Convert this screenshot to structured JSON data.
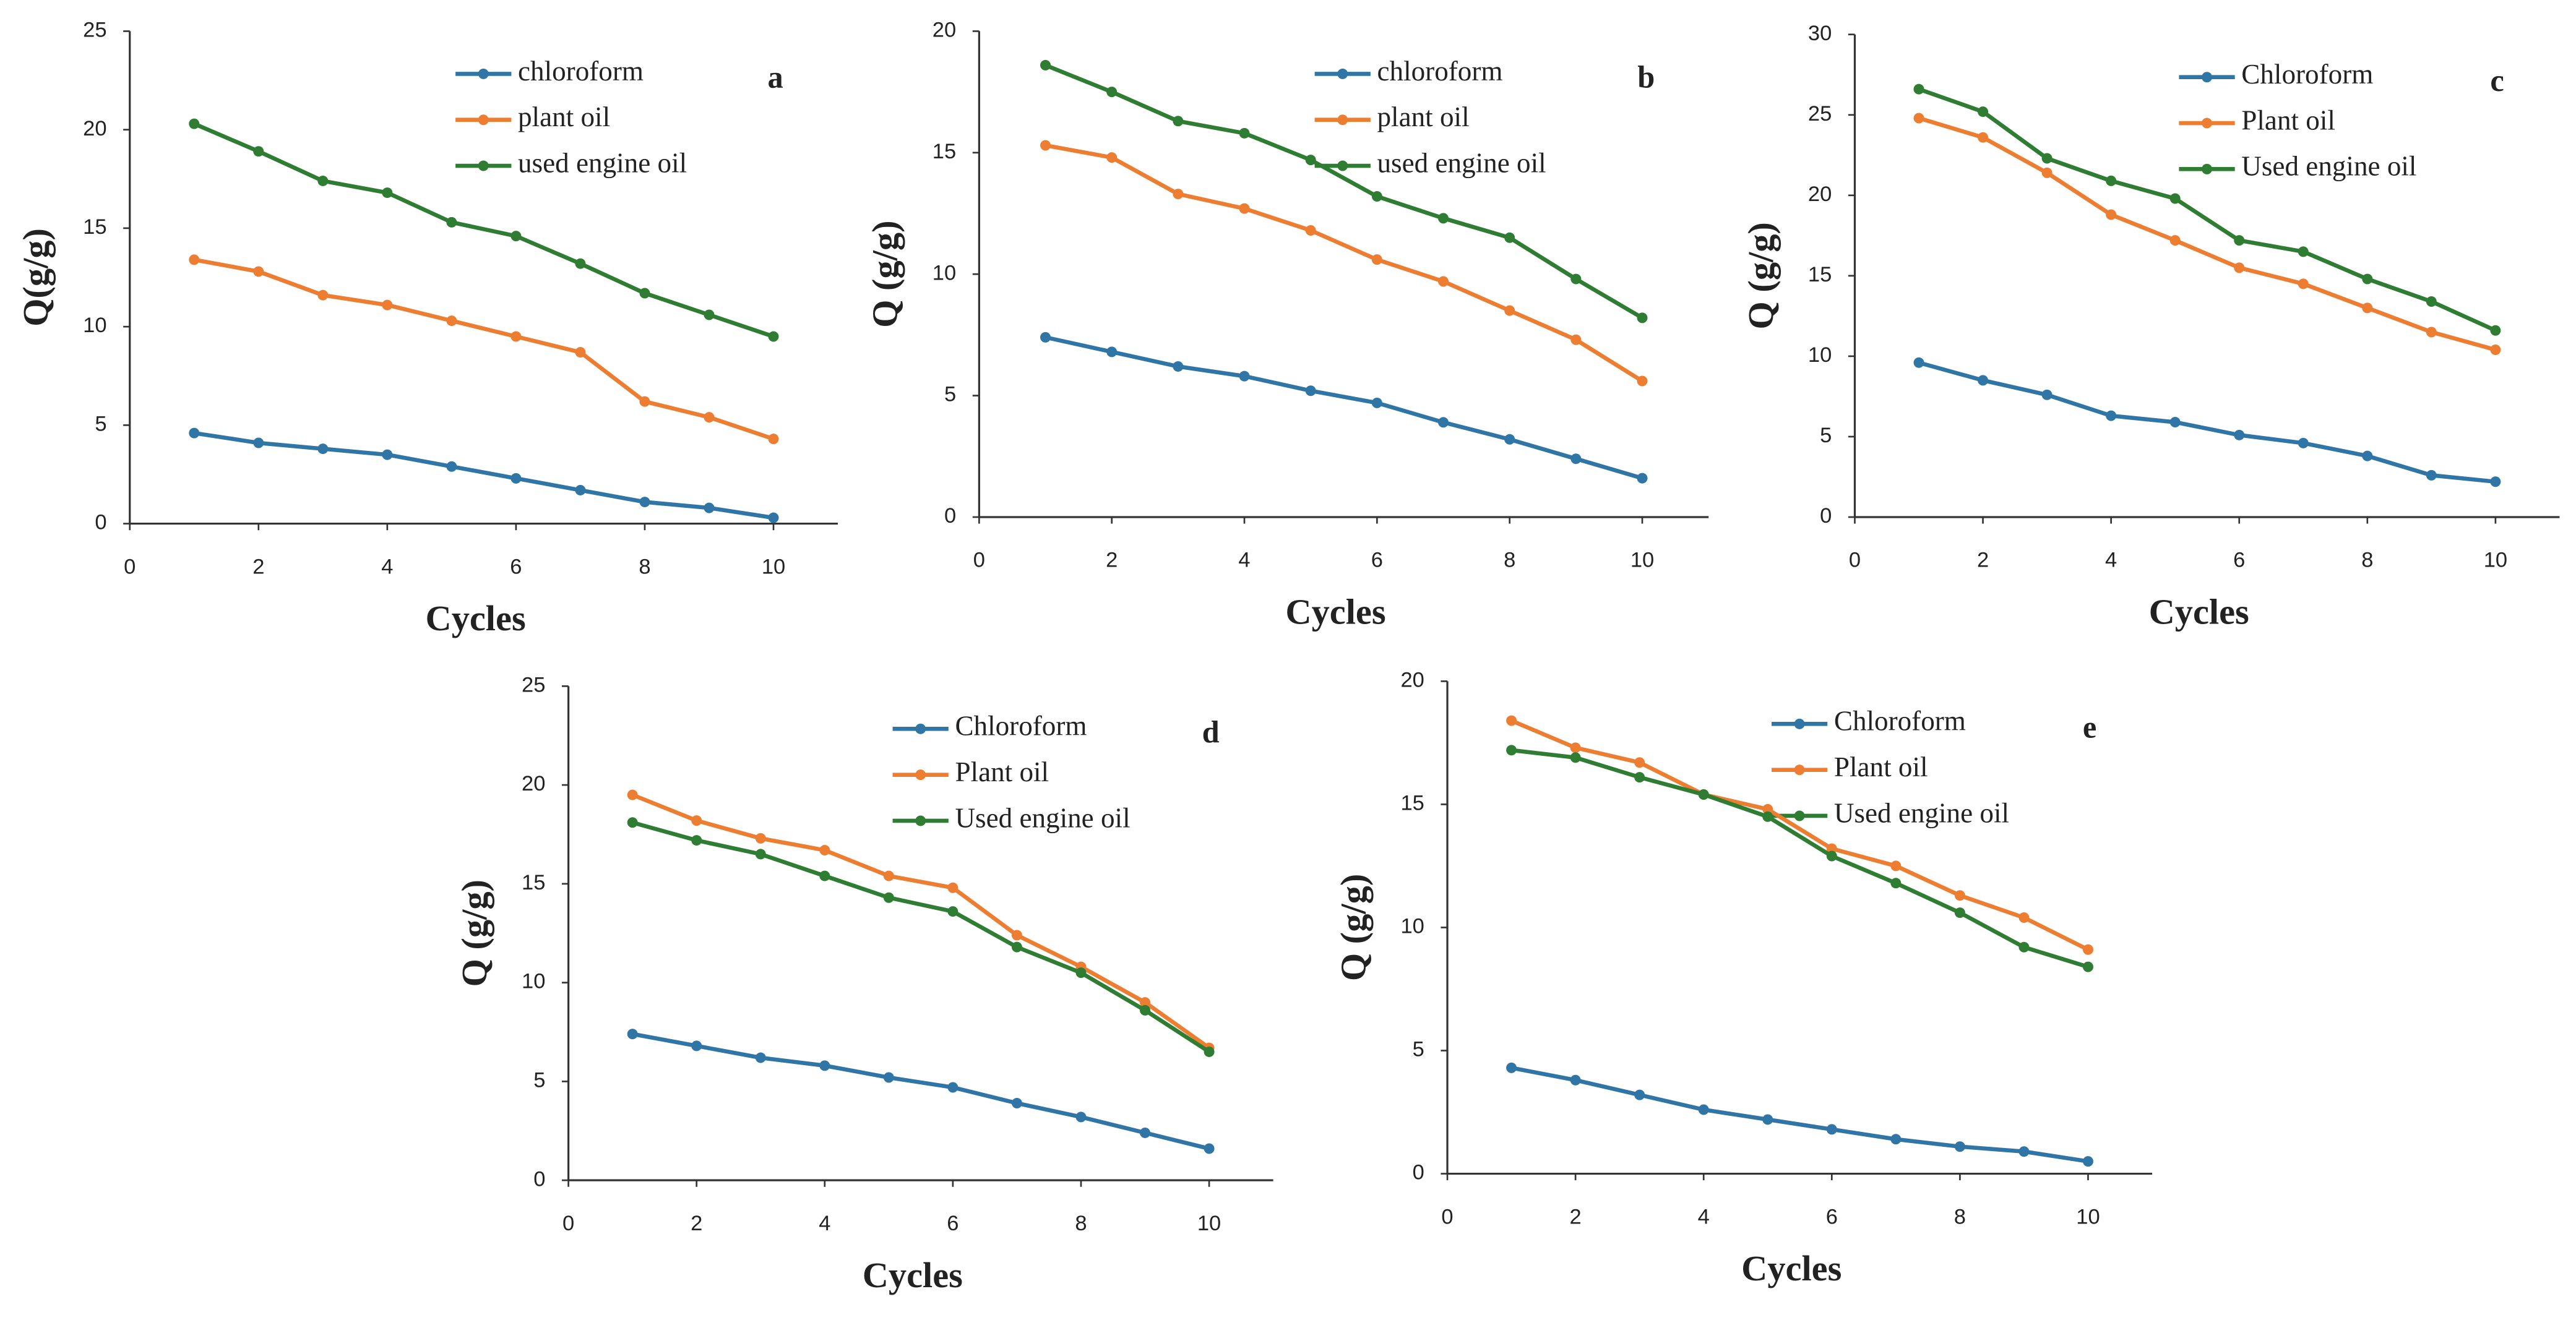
{
  "chart_data": [
    {
      "type": "line",
      "annotation": "a",
      "xlabel": "Cycles",
      "ylabel": "Q(g/g)",
      "x": [
        1,
        2,
        3,
        4,
        5,
        6,
        7,
        8,
        9,
        10
      ],
      "xlim": [
        0,
        11
      ],
      "xticks": [
        0,
        2,
        4,
        6,
        8,
        10
      ],
      "ylim": [
        0,
        25
      ],
      "yticks": [
        0,
        5,
        10,
        15,
        20,
        25
      ],
      "series": [
        {
          "name": "chloroform",
          "color": "#2f75a6",
          "values": [
            4.6,
            4.1,
            3.8,
            3.5,
            2.9,
            2.3,
            1.7,
            1.1,
            0.8,
            0.3
          ]
        },
        {
          "name": "plant oil",
          "color": "#ed7d31",
          "values": [
            13.4,
            12.8,
            11.6,
            11.1,
            10.3,
            9.5,
            8.7,
            6.2,
            5.4,
            4.3
          ]
        },
        {
          "name": "used engine oil",
          "color": "#2e7d32",
          "values": [
            20.3,
            18.9,
            17.4,
            16.8,
            15.3,
            14.6,
            13.2,
            11.7,
            10.6,
            9.5
          ]
        }
      ]
    },
    {
      "type": "line",
      "annotation": "b",
      "xlabel": "Cycles",
      "ylabel": "Q (g/g)",
      "x": [
        1,
        2,
        3,
        4,
        5,
        6,
        7,
        8,
        9,
        10
      ],
      "xlim": [
        0,
        11
      ],
      "xticks": [
        0,
        2,
        4,
        6,
        8,
        10
      ],
      "ylim": [
        0,
        20
      ],
      "yticks": [
        0,
        5,
        10,
        15,
        20
      ],
      "series": [
        {
          "name": "chloroform",
          "color": "#2f75a6",
          "values": [
            7.4,
            6.8,
            6.2,
            5.8,
            5.2,
            4.7,
            3.9,
            3.2,
            2.4,
            1.6
          ]
        },
        {
          "name": "plant oil",
          "color": "#ed7d31",
          "values": [
            15.3,
            14.8,
            13.3,
            12.7,
            11.8,
            10.6,
            9.7,
            8.5,
            7.3,
            5.6
          ]
        },
        {
          "name": "used engine oil",
          "color": "#2e7d32",
          "values": [
            18.6,
            17.5,
            16.3,
            15.8,
            14.7,
            13.2,
            12.3,
            11.5,
            9.8,
            8.2
          ]
        }
      ]
    },
    {
      "type": "line",
      "annotation": "c",
      "xlabel": "Cycles",
      "ylabel": "Q (g/g)",
      "x": [
        1,
        2,
        3,
        4,
        5,
        6,
        7,
        8,
        9,
        10
      ],
      "xlim": [
        0,
        11
      ],
      "xticks": [
        0,
        2,
        4,
        6,
        8,
        10
      ],
      "ylim": [
        0,
        30
      ],
      "yticks": [
        0,
        5,
        10,
        15,
        20,
        25,
        30
      ],
      "series": [
        {
          "name": "Chloroform",
          "color": "#2f75a6",
          "values": [
            9.6,
            8.5,
            7.6,
            6.3,
            5.9,
            5.1,
            4.6,
            3.8,
            2.6,
            2.2
          ]
        },
        {
          "name": "Plant oil",
          "color": "#ed7d31",
          "values": [
            24.8,
            23.6,
            21.4,
            18.8,
            17.2,
            15.5,
            14.5,
            13.0,
            11.5,
            10.4
          ]
        },
        {
          "name": "Used engine oil",
          "color": "#2e7d32",
          "values": [
            26.6,
            25.2,
            22.3,
            20.9,
            19.8,
            17.2,
            16.5,
            14.8,
            13.4,
            11.6
          ]
        }
      ]
    },
    {
      "type": "line",
      "annotation": "d",
      "xlabel": "Cycles",
      "ylabel": "Q (g/g)",
      "x": [
        1,
        2,
        3,
        4,
        5,
        6,
        7,
        8,
        9,
        10
      ],
      "xlim": [
        0,
        11
      ],
      "xticks": [
        0,
        2,
        4,
        6,
        8,
        10
      ],
      "ylim": [
        0,
        25
      ],
      "yticks": [
        0,
        5,
        10,
        15,
        20,
        25
      ],
      "series": [
        {
          "name": "Chloroform",
          "color": "#2f75a6",
          "values": [
            7.4,
            6.8,
            6.2,
            5.8,
            5.2,
            4.7,
            3.9,
            3.2,
            2.4,
            1.6
          ]
        },
        {
          "name": "Plant oil",
          "color": "#ed7d31",
          "values": [
            19.5,
            18.2,
            17.3,
            16.7,
            15.4,
            14.8,
            12.4,
            10.8,
            9.0,
            6.7
          ]
        },
        {
          "name": "Used engine oil",
          "color": "#2e7d32",
          "values": [
            18.1,
            17.2,
            16.5,
            15.4,
            14.3,
            13.6,
            11.8,
            10.5,
            8.6,
            6.5
          ]
        }
      ]
    },
    {
      "type": "line",
      "annotation": "e",
      "xlabel": "Cycles",
      "ylabel": "Q (g/g)",
      "x": [
        1,
        2,
        3,
        4,
        5,
        6,
        7,
        8,
        9,
        10
      ],
      "xlim": [
        0,
        11
      ],
      "xticks": [
        0,
        2,
        4,
        6,
        8,
        10
      ],
      "ylim": [
        0,
        20
      ],
      "yticks": [
        0,
        5,
        10,
        15,
        20
      ],
      "series": [
        {
          "name": "Chloroform",
          "color": "#2f75a6",
          "values": [
            4.3,
            3.8,
            3.2,
            2.6,
            2.2,
            1.8,
            1.4,
            1.1,
            0.9,
            0.5
          ]
        },
        {
          "name": "Plant oil",
          "color": "#ed7d31",
          "values": [
            18.4,
            17.3,
            16.7,
            15.4,
            14.8,
            13.2,
            12.5,
            11.3,
            10.4,
            9.1
          ]
        },
        {
          "name": "Used engine oil",
          "color": "#2e7d32",
          "values": [
            17.2,
            16.9,
            16.1,
            15.4,
            14.5,
            12.9,
            11.8,
            10.6,
            9.2,
            8.4
          ]
        }
      ]
    }
  ]
}
